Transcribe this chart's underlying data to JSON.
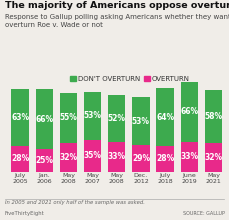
{
  "title": "The majority of Americans oppose overturning Roe",
  "subtitle": "Response to Gallup polling asking Americans whether they wanted to\noverturn Roe v. Wade or not",
  "footnote": "In 2005 and 2021 only half of the sample was asked.",
  "source": "SOURCE: GALLUP",
  "credit": "FiveThirtyEight",
  "categories": [
    "July\n2005",
    "Jan.\n2006",
    "May\n2008",
    "May\n2007",
    "May\n2008",
    "Dec.\n2012",
    "July\n2018",
    "June\n2019",
    "May\n2021"
  ],
  "dont_overturn": [
    63,
    66,
    55,
    53,
    52,
    53,
    64,
    66,
    58
  ],
  "overturn": [
    28,
    25,
    32,
    35,
    33,
    29,
    28,
    33,
    32
  ],
  "color_dont": "#3daa4e",
  "color_overturn": "#e8298a",
  "bar_width": 0.72,
  "title_fontsize": 6.8,
  "subtitle_fontsize": 5.0,
  "tick_fontsize": 4.5,
  "legend_fontsize": 5.0,
  "label_fontsize": 5.5,
  "background_color": "#f0ede8"
}
